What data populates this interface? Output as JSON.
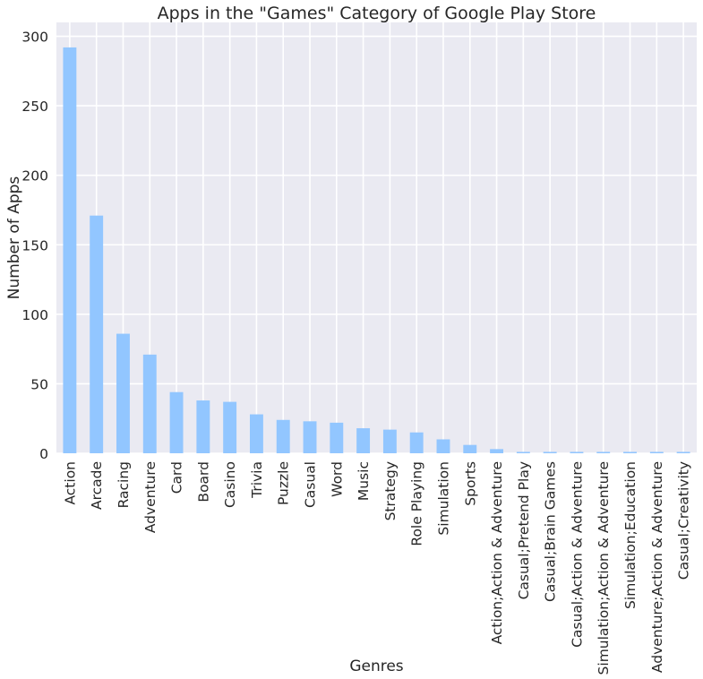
{
  "chart_data": {
    "type": "bar",
    "title": "Apps in the \"Games\" Category of Google Play Store",
    "xlabel": "Genres",
    "ylabel": "Number of Apps",
    "ylim": [
      0,
      310
    ],
    "yticks": [
      0,
      50,
      100,
      150,
      200,
      250,
      300
    ],
    "grid": true,
    "categories": [
      "Action",
      "Arcade",
      "Racing",
      "Adventure",
      "Card",
      "Board",
      "Casino",
      "Trivia",
      "Puzzle",
      "Casual",
      "Word",
      "Music",
      "Strategy",
      "Role Playing",
      "Simulation",
      "Sports",
      "Action;Action & Adventure",
      "Casual;Pretend Play",
      "Casual;Brain Games",
      "Casual;Action & Adventure",
      "Simulation;Action & Adventure",
      "Simulation;Education",
      "Adventure;Action & Adventure",
      "Casual;Creativity"
    ],
    "values": [
      292,
      171,
      86,
      71,
      44,
      38,
      37,
      28,
      24,
      23,
      22,
      18,
      17,
      15,
      10,
      6,
      3,
      1,
      1,
      1,
      1,
      1,
      1,
      1
    ],
    "bar_color": "#92c6ff",
    "background_color": "#eaeaf2",
    "grid_color": "#ffffff"
  }
}
